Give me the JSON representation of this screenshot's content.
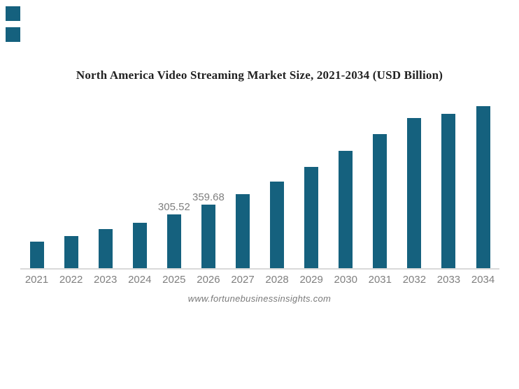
{
  "page": {
    "background": "#FFFFFF"
  },
  "brand": {
    "square_color": "#15617E",
    "squares": [
      "brand-square-top",
      "brand-square-bottom"
    ]
  },
  "chart_data": {
    "type": "bar",
    "title": "North America Video Streaming Market Size, 2021-2034 (USD Billion)",
    "unit": "USD Billion",
    "categories": [
      "2021",
      "2022",
      "2023",
      "2024",
      "2025",
      "2026",
      "2027",
      "2028",
      "2029",
      "2030",
      "2031",
      "2032",
      "2033",
      "2034"
    ],
    "values": [
      152.5,
      184,
      220,
      258,
      305.52,
      359.68,
      421,
      491,
      576,
      666,
      761,
      853,
      877,
      917
    ],
    "value_labels": {
      "2025": "305.52",
      "2026": "359.68"
    },
    "xlabel": "",
    "ylabel": "",
    "ylim": [
      0,
      950
    ],
    "grid": false,
    "legend": false,
    "bar_color": "#15617E",
    "axis_line_color": "#D9D9D9",
    "tick_label_color": "#7F7F7F",
    "value_label_color": "#7F7F7F"
  },
  "footer": {
    "watermark": "www.fortunebusinessinsights.com"
  }
}
